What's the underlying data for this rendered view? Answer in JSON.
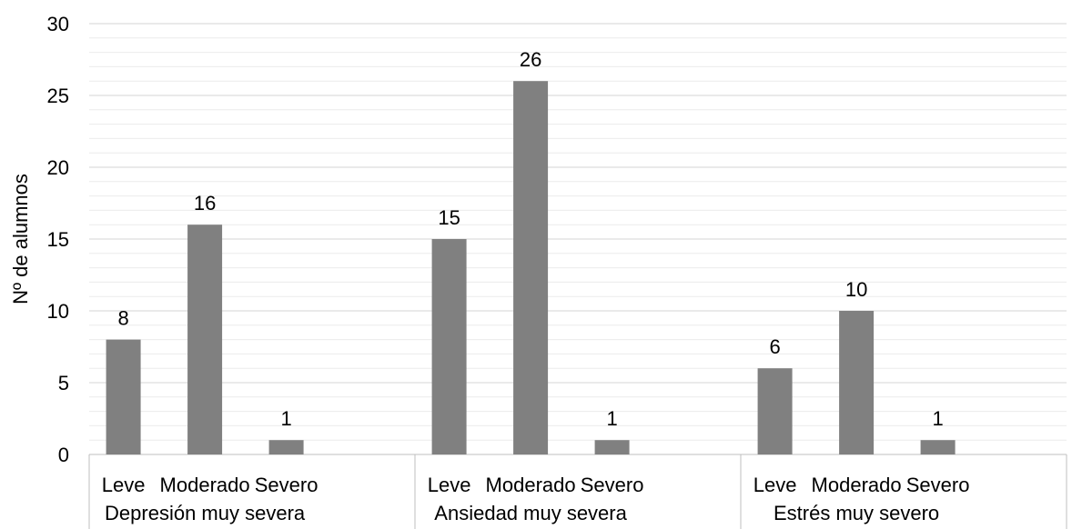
{
  "chart_data": {
    "type": "bar",
    "ylabel": "Nº de alumnos",
    "xlabel": "",
    "title": "",
    "ylim": [
      0,
      30
    ],
    "y_ticks": [
      0,
      5,
      10,
      15,
      20,
      25,
      30
    ],
    "y_minor_step": 1,
    "grid": true,
    "legend": "none",
    "bar_color": "#808080",
    "groups": [
      {
        "name": "Depresión muy severa",
        "categories": [
          "Leve",
          "Moderado",
          "Severo"
        ],
        "values": [
          8,
          16,
          1
        ]
      },
      {
        "name": "Ansiedad muy severa",
        "categories": [
          "Leve",
          "Moderado",
          "Severo"
        ],
        "values": [
          15,
          26,
          1
        ]
      },
      {
        "name": "Estrés muy severo",
        "categories": [
          "Leve",
          "Moderado",
          "Severo"
        ],
        "values": [
          6,
          10,
          1
        ]
      }
    ]
  }
}
